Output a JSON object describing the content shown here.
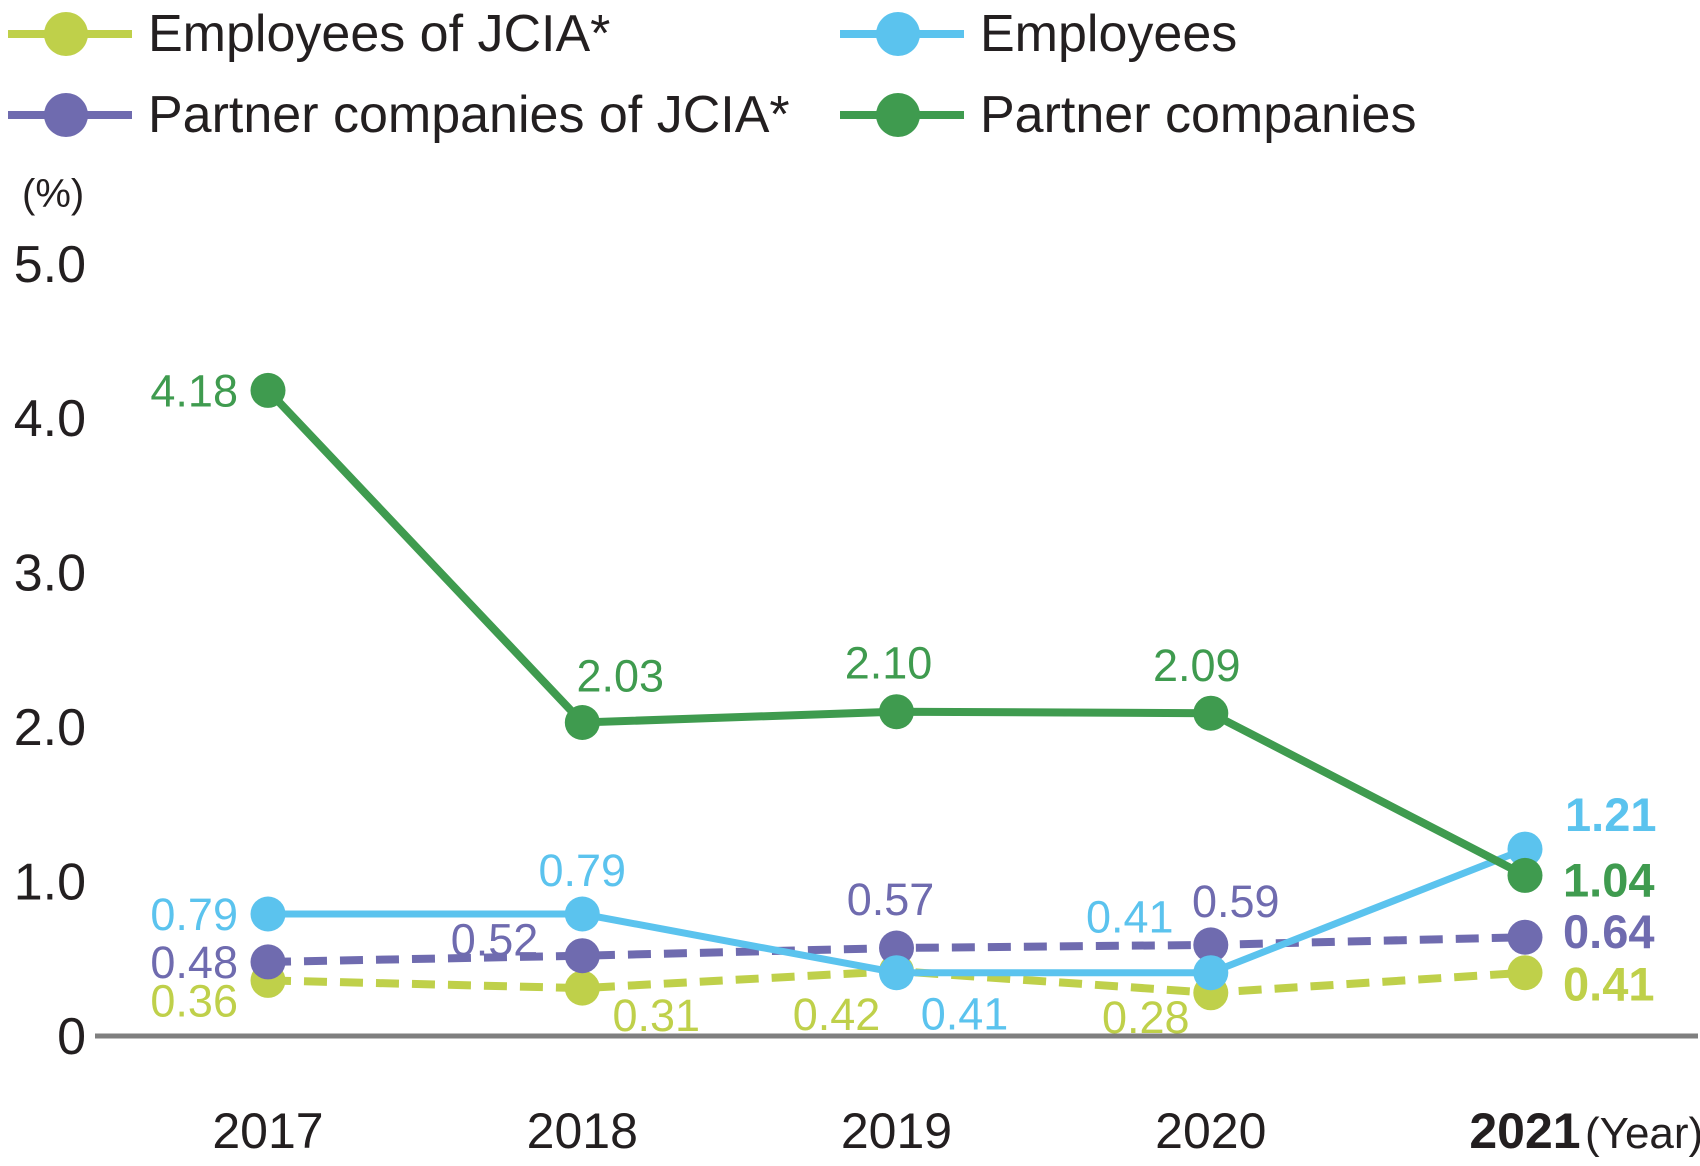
{
  "axes": {
    "unit_label": "(%)",
    "x_suffix": "(Year)",
    "yticks": [
      {
        "label": "5.0",
        "value": 5
      },
      {
        "label": "4.0",
        "value": 4
      },
      {
        "label": "3.0",
        "value": 3
      },
      {
        "label": "2.0",
        "value": 2
      },
      {
        "label": "1.0",
        "value": 1
      },
      {
        "label": "0",
        "value": 0
      }
    ]
  },
  "colors": {
    "text": "#231F20",
    "axis_line": "#7F7F7F"
  },
  "chart_data": {
    "type": "line",
    "categories": [
      "2017",
      "2018",
      "2019",
      "2020",
      "2021"
    ],
    "title": "",
    "xlabel": "(Year)",
    "ylabel": "(%)",
    "ylim": [
      0,
      5
    ],
    "grid": false,
    "legend_position": "top",
    "bold_last_category": true,
    "series": [
      {
        "name": "Employees of JCIA*",
        "color": "#BFD04A",
        "style": "dashed",
        "values": [
          0.36,
          0.31,
          0.42,
          0.28,
          0.41
        ],
        "labels": [
          "0.36",
          "0.31",
          "0.42",
          "0.28",
          "0.41"
        ],
        "label_offsets": [
          {
            "anchor": "end",
            "dx": -30,
            "dy": 20
          },
          {
            "anchor": "middle",
            "dx": 74,
            "dy": 27
          },
          {
            "anchor": "middle",
            "dx": -60,
            "dy": 43
          },
          {
            "anchor": "middle",
            "dx": -65,
            "dy": 24
          },
          {
            "anchor": "start",
            "dx": 38,
            "dy": 12
          }
        ]
      },
      {
        "name": "Partner companies of JCIA*",
        "color": "#6F6BAF",
        "style": "dashed",
        "values": [
          0.48,
          0.52,
          0.57,
          0.59,
          0.64
        ],
        "labels": [
          "0.48",
          "0.52",
          "0.57",
          "0.59",
          "0.64"
        ],
        "label_offsets": [
          {
            "anchor": "end",
            "dx": -30,
            "dy": 0
          },
          {
            "anchor": "end",
            "dx": -44,
            "dy": -16
          },
          {
            "anchor": "middle",
            "dx": -6,
            "dy": -49
          },
          {
            "anchor": "middle",
            "dx": 25,
            "dy": -44
          },
          {
            "anchor": "start",
            "dx": 38,
            "dy": -5
          }
        ]
      },
      {
        "name": "Employees",
        "color": "#5BC3EE",
        "style": "solid",
        "values": [
          0.79,
          0.79,
          0.41,
          0.41,
          1.21
        ],
        "labels": [
          "0.79",
          "0.79",
          "0.41",
          "0.41",
          "1.21"
        ],
        "label_offsets": [
          {
            "anchor": "end",
            "dx": -30,
            "dy": 0
          },
          {
            "anchor": "middle",
            "dx": 0,
            "dy": -44
          },
          {
            "anchor": "middle",
            "dx": 68,
            "dy": 41
          },
          {
            "anchor": "middle",
            "dx": -81,
            "dy": -56
          },
          {
            "anchor": "start",
            "dx": 40,
            "dy": -34
          }
        ]
      },
      {
        "name": "Partner companies",
        "color": "#3F9B4F",
        "style": "solid",
        "values": [
          4.18,
          2.03,
          2.1,
          2.09,
          1.04
        ],
        "labels": [
          "4.18",
          "2.03",
          "2.10",
          "2.09",
          "1.04"
        ],
        "label_offsets": [
          {
            "anchor": "end",
            "dx": -30,
            "dy": 0
          },
          {
            "anchor": "middle",
            "dx": 38,
            "dy": -47
          },
          {
            "anchor": "middle",
            "dx": -8,
            "dy": -49
          },
          {
            "anchor": "middle",
            "dx": -14,
            "dy": -48
          },
          {
            "anchor": "start",
            "dx": 38,
            "dy": 5
          }
        ]
      }
    ]
  }
}
